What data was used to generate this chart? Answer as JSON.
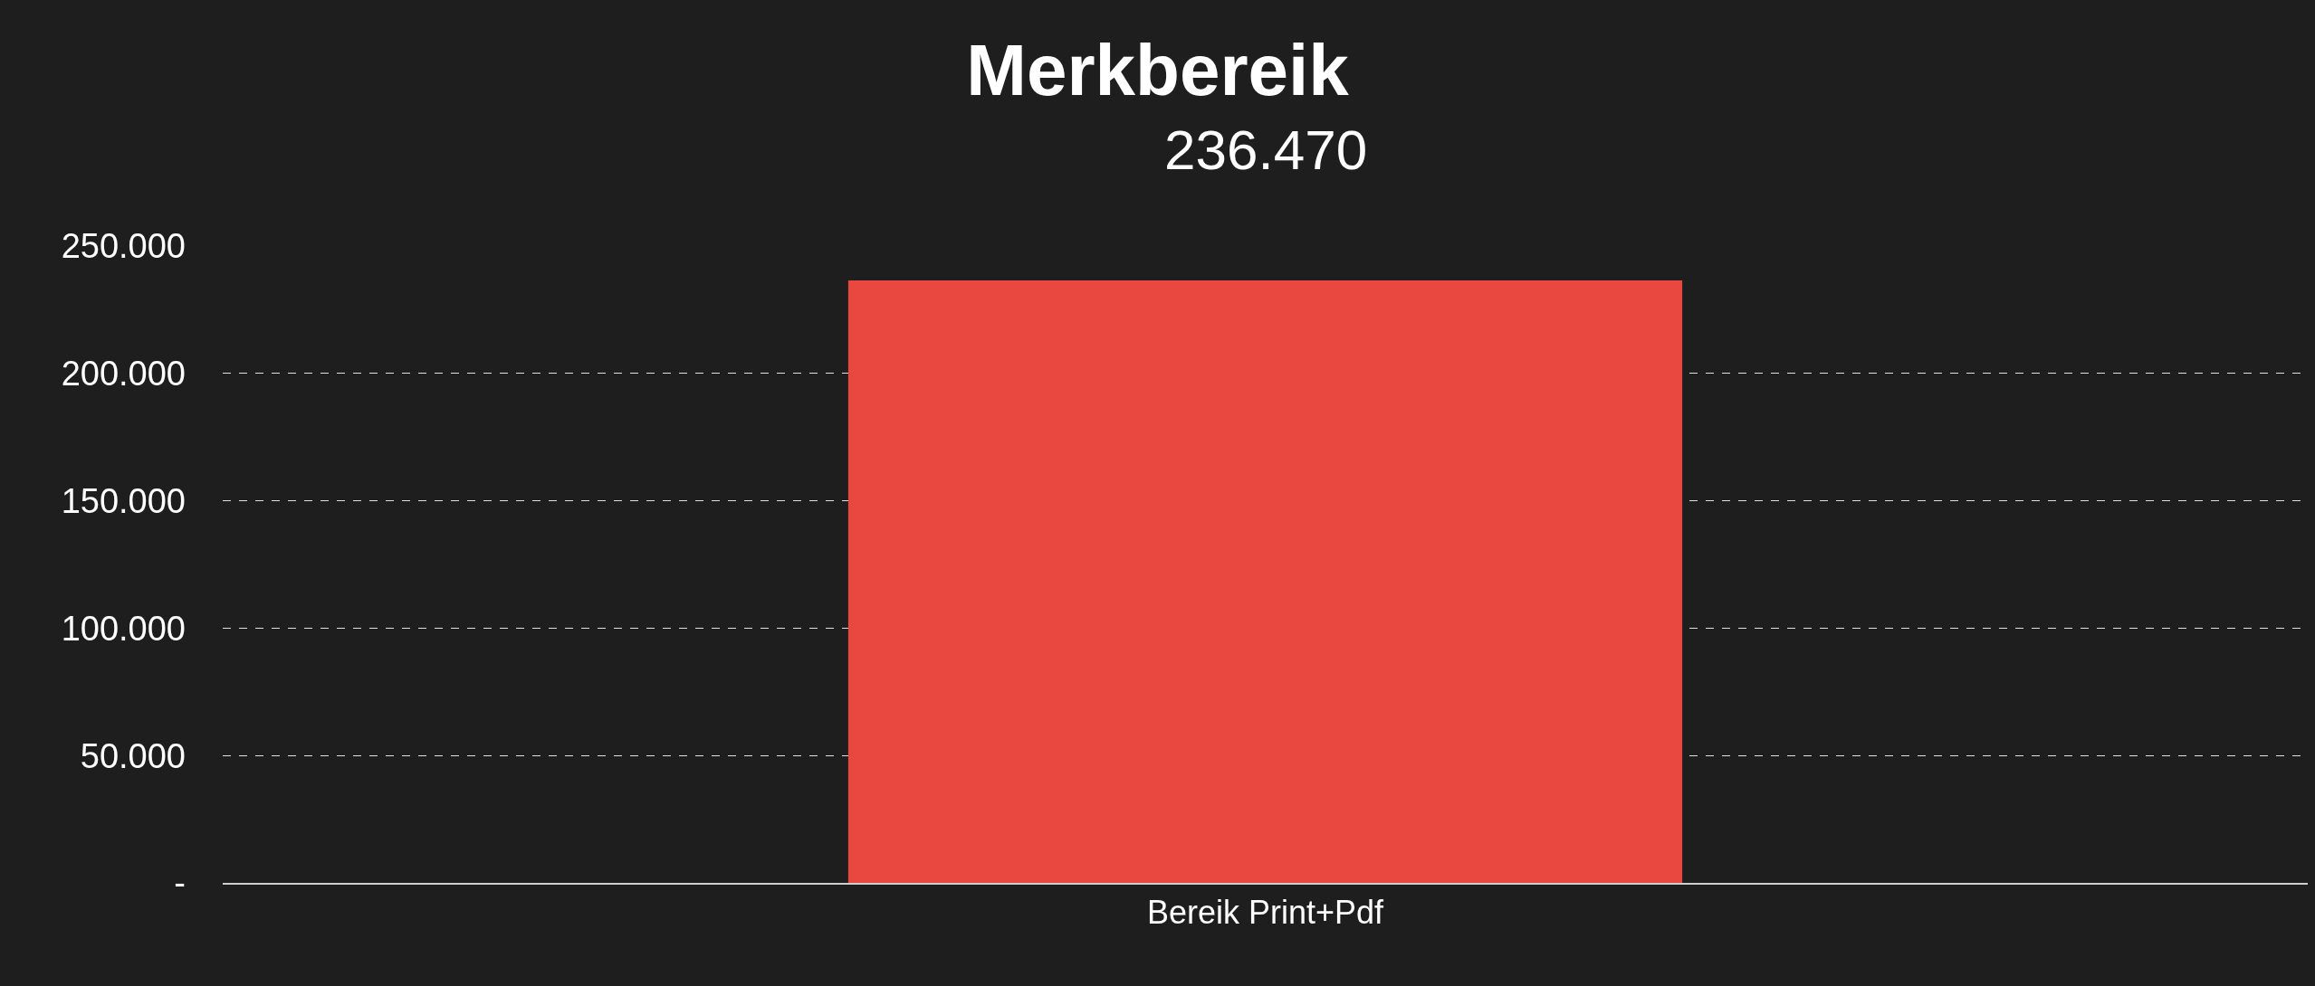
{
  "chart_data": {
    "type": "bar",
    "title": "Merkbereik",
    "subtitle": "236.470",
    "categories": [
      "Bereik Print+Pdf"
    ],
    "values": [
      236470
    ],
    "color": "#e8483f",
    "ylim": [
      0,
      250000
    ],
    "yticks": [
      {
        "value": 0,
        "label": "-"
      },
      {
        "value": 50000,
        "label": "50.000"
      },
      {
        "value": 100000,
        "label": "100.000"
      },
      {
        "value": 150000,
        "label": "150.000"
      },
      {
        "value": 200000,
        "label": "200.000"
      },
      {
        "value": 250000,
        "label": "250.000"
      }
    ],
    "grid": "y"
  }
}
